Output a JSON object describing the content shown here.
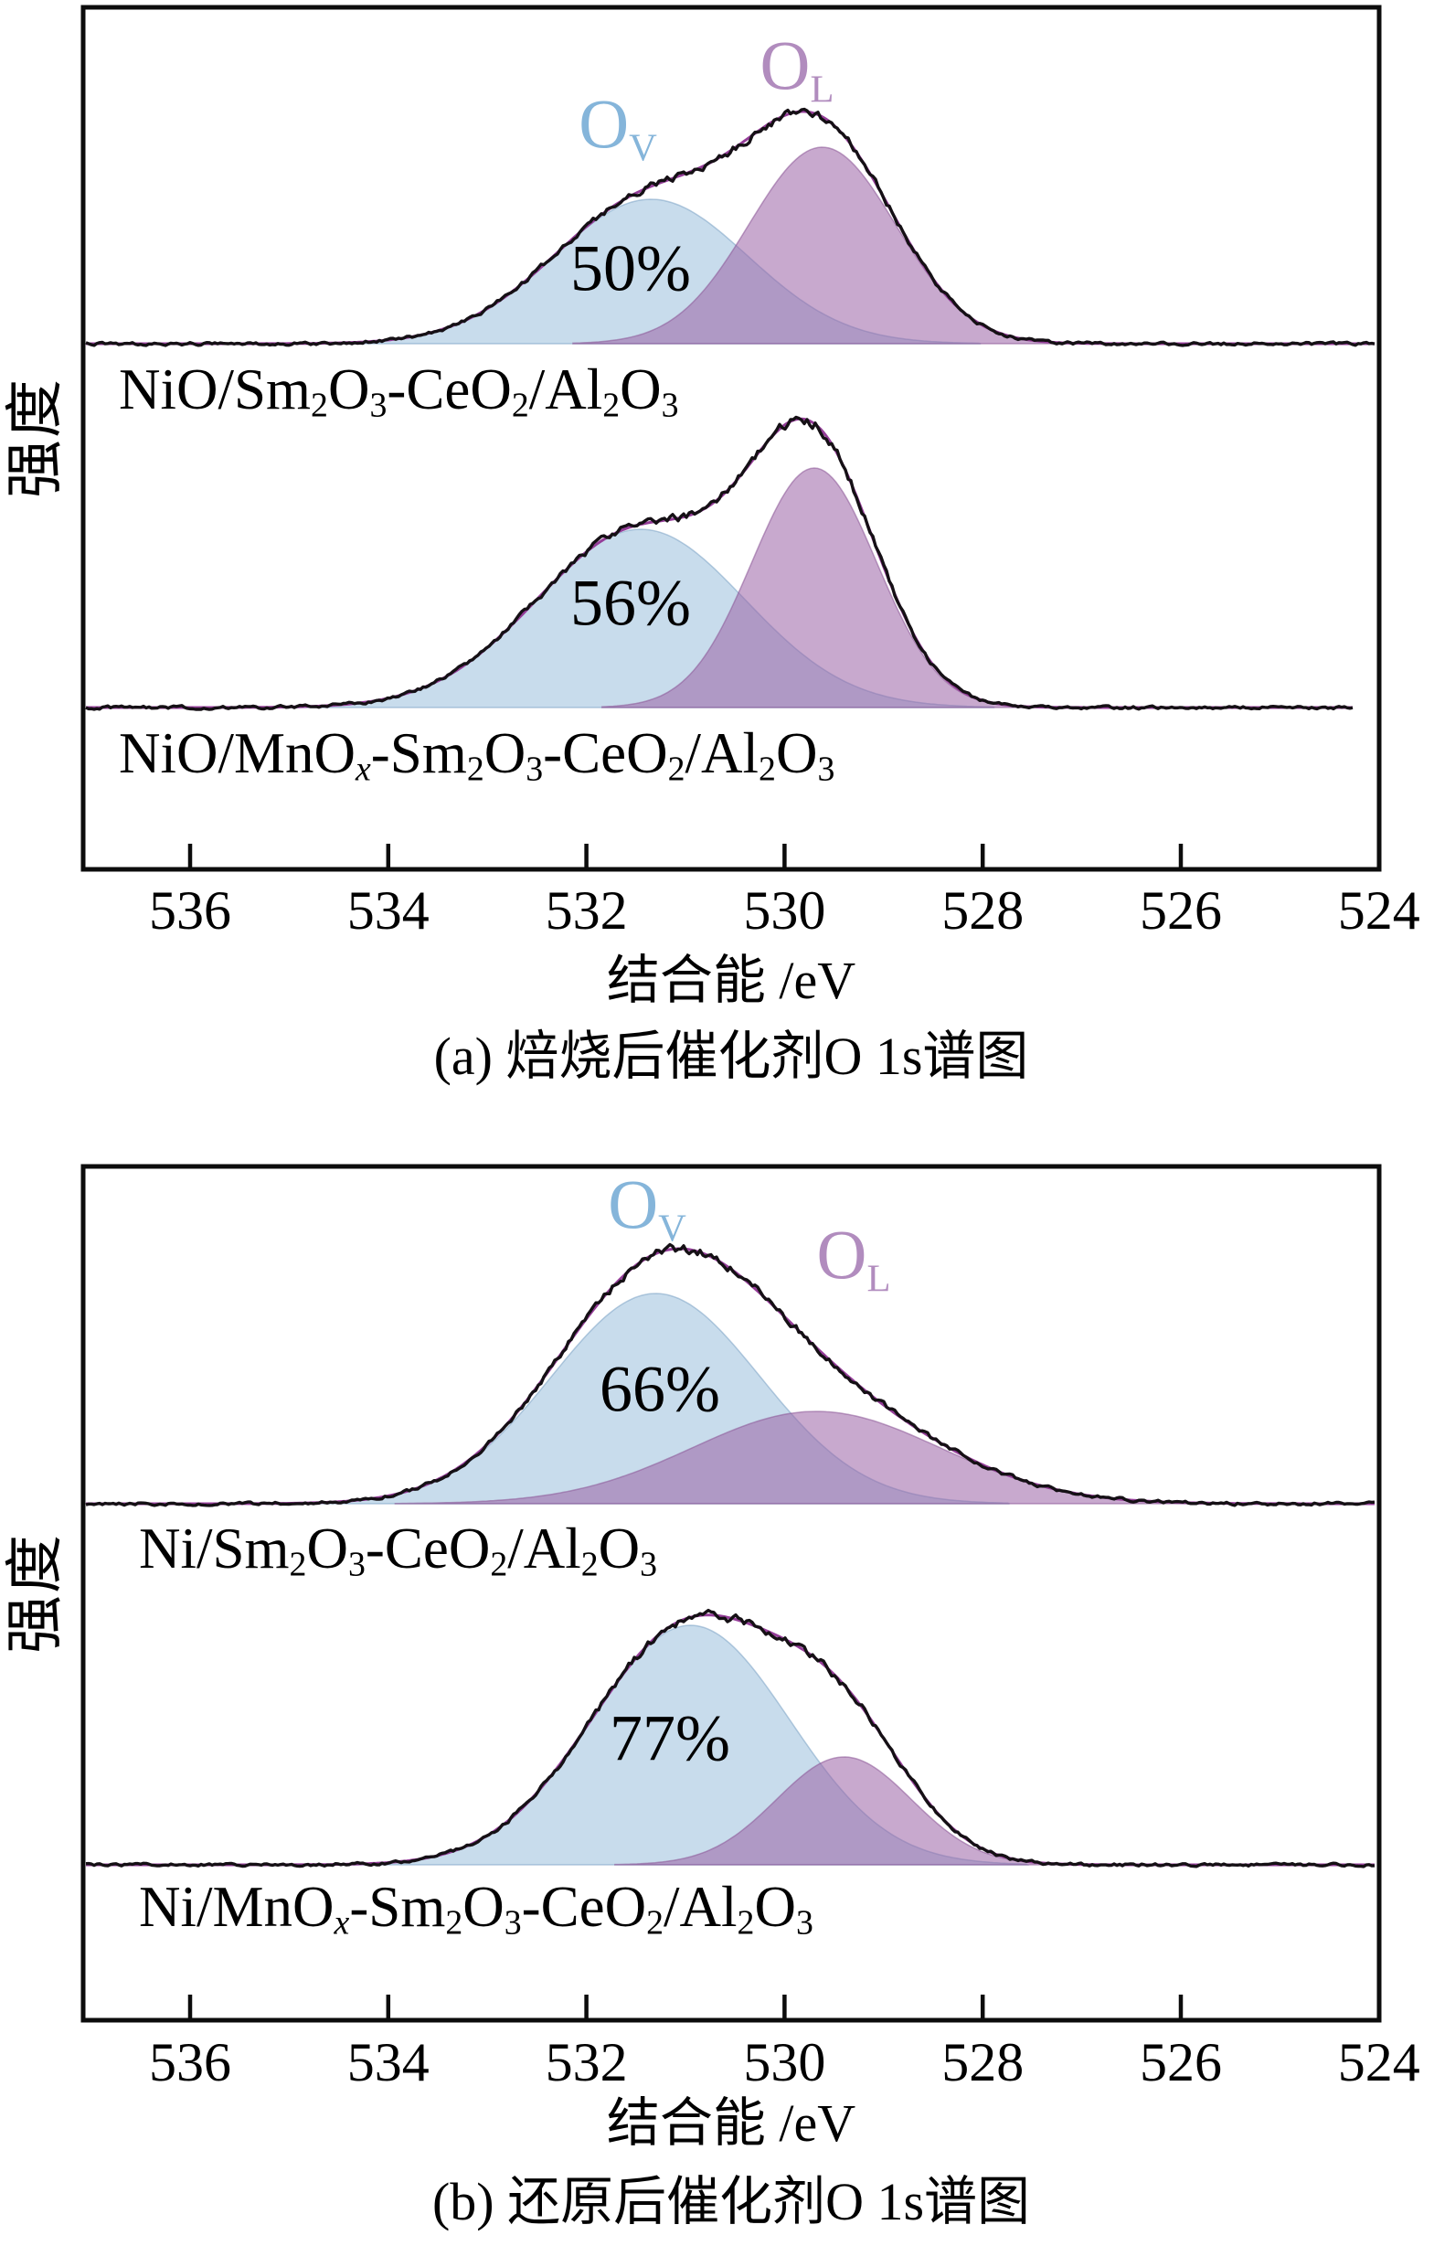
{
  "colors": {
    "ov_label": "#85b5da",
    "ol_label": "#b18cbe",
    "ov_fill": "#a6c6e0",
    "ol_fill": "#9a63a6",
    "fit_line": "#953e99",
    "data_line": "#151015",
    "axis": "#0c0c0c",
    "text": "#000000"
  },
  "chart_data": [
    {
      "type": "area",
      "panel": "a",
      "caption": "(a) 焙烧后催化剂O 1s谱图",
      "xlabel": "结合能 /eV",
      "ylabel": "强度",
      "x_unit": "eV",
      "x_ticks": [
        536,
        534,
        532,
        530,
        528,
        526,
        524
      ],
      "x_range_eV": [
        537.1,
        524.0
      ],
      "x_reversed": true,
      "grid": false,
      "ov_label_rich": [
        {
          "t": "O"
        },
        {
          "t": "V",
          "sub": true
        }
      ],
      "ol_label_rich": [
        {
          "t": "O"
        },
        {
          "t": "L",
          "sub": true
        }
      ],
      "spectra": [
        {
          "name": "NiO/Sm2O3-CeO2/Al2O3",
          "label_rich": [
            {
              "t": "NiO/Sm"
            },
            {
              "t": "2",
              "sub": true
            },
            {
              "t": "O"
            },
            {
              "t": "3",
              "sub": true
            },
            {
              "t": "-CeO"
            },
            {
              "t": "2",
              "sub": true
            },
            {
              "t": "/Al"
            },
            {
              "t": "2",
              "sub": true
            },
            {
              "t": "O"
            },
            {
              "t": "3",
              "sub": true
            }
          ],
          "ov_percent": "50%",
          "peaks": [
            {
              "name": "OV",
              "center_eV": 531.35,
              "sigma_eV": 0.98,
              "height_au": 158
            },
            {
              "name": "OL",
              "center_eV": 529.62,
              "sigma_eV": 0.74,
              "height_au": 215
            }
          ]
        },
        {
          "name": "NiO/MnOx-Sm2O3-CeO2/Al2O3",
          "label_rich": [
            {
              "t": "NiO/MnO"
            },
            {
              "t": "x",
              "sub": true,
              "i": true
            },
            {
              "t": "-Sm"
            },
            {
              "t": "2",
              "sub": true
            },
            {
              "t": "O"
            },
            {
              "t": "3",
              "sub": true
            },
            {
              "t": "-CeO"
            },
            {
              "t": "2",
              "sub": true
            },
            {
              "t": "/Al"
            },
            {
              "t": "2",
              "sub": true
            },
            {
              "t": "O"
            },
            {
              "t": "3",
              "sub": true
            }
          ],
          "ov_percent": "56%",
          "peaks": [
            {
              "name": "OV",
              "center_eV": 531.45,
              "sigma_eV": 1.05,
              "height_au": 195
            },
            {
              "name": "OL",
              "center_eV": 529.7,
              "sigma_eV": 0.63,
              "height_au": 262
            }
          ]
        }
      ]
    },
    {
      "type": "area",
      "panel": "b",
      "caption": "(b) 还原后催化剂O 1s谱图",
      "xlabel": "结合能 /eV",
      "ylabel": "强度",
      "x_unit": "eV",
      "x_ticks": [
        536,
        534,
        532,
        530,
        528,
        526,
        524
      ],
      "x_range_eV": [
        537.1,
        524.0
      ],
      "x_reversed": true,
      "grid": false,
      "ov_label_rich": [
        {
          "t": "O"
        },
        {
          "t": "V",
          "sub": true
        }
      ],
      "ol_label_rich": [
        {
          "t": "O"
        },
        {
          "t": "L",
          "sub": true
        }
      ],
      "spectra": [
        {
          "name": "Ni/Sm2O3-CeO2/Al2O3",
          "label_rich": [
            {
              "t": "Ni/Sm"
            },
            {
              "t": "2",
              "sub": true
            },
            {
              "t": "O"
            },
            {
              "t": "3",
              "sub": true
            },
            {
              "t": "-CeO"
            },
            {
              "t": "2",
              "sub": true
            },
            {
              "t": "/Al"
            },
            {
              "t": "2",
              "sub": true
            },
            {
              "t": "O"
            },
            {
              "t": "3",
              "sub": true
            }
          ],
          "ov_percent": "66%",
          "peaks": [
            {
              "name": "OV",
              "center_eV": 531.3,
              "sigma_eV": 1.05,
              "height_au": 230
            },
            {
              "name": "OL",
              "center_eV": 529.68,
              "sigma_eV": 1.25,
              "height_au": 101
            }
          ]
        },
        {
          "name": "Ni/MnOx-Sm2O3-CeO2/Al2O3",
          "label_rich": [
            {
              "t": "Ni/MnO"
            },
            {
              "t": "x",
              "sub": true,
              "i": true
            },
            {
              "t": "-Sm"
            },
            {
              "t": "2",
              "sub": true
            },
            {
              "t": "O"
            },
            {
              "t": "3",
              "sub": true
            },
            {
              "t": "-CeO"
            },
            {
              "t": "2",
              "sub": true
            },
            {
              "t": "/Al"
            },
            {
              "t": "2",
              "sub": true
            },
            {
              "t": "O"
            },
            {
              "t": "3",
              "sub": true
            }
          ],
          "ov_percent": "77%",
          "peaks": [
            {
              "name": "OV",
              "center_eV": 530.95,
              "sigma_eV": 1.0,
              "height_au": 262
            },
            {
              "name": "OL",
              "center_eV": 529.4,
              "sigma_eV": 0.68,
              "height_au": 118
            }
          ]
        }
      ]
    }
  ]
}
